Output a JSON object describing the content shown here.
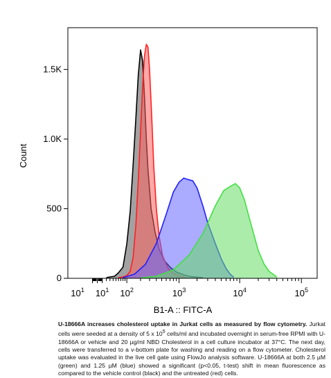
{
  "chart_data": {
    "type": "area",
    "xlabel": "B1-A :: FITC-A",
    "ylabel": "Count",
    "x_scale": "log",
    "xlim": [
      -100,
      180000
    ],
    "ylim": [
      0,
      1800
    ],
    "y_ticks": [
      {
        "value": 0,
        "label": "0"
      },
      {
        "value": 500,
        "label": "500"
      },
      {
        "value": 1000,
        "label": "1.0K"
      },
      {
        "value": 1500,
        "label": "1.5K"
      }
    ],
    "x_tick_labels": [
      {
        "value": -10,
        "base": "10",
        "exp": "1"
      },
      {
        "value": 10,
        "base": "10",
        "exp": "1"
      },
      {
        "value": 100,
        "base": "10",
        "exp": "2"
      },
      {
        "value": 1000,
        "base": "10",
        "exp": "3"
      },
      {
        "value": 10000,
        "base": "10",
        "exp": "4"
      },
      {
        "value": 100000,
        "base": "10",
        "exp": "5"
      }
    ],
    "series": [
      {
        "color": "#000000",
        "fill": "#555555",
        "x": [
          20,
          30,
          45,
          60,
          80,
          100,
          120,
          140,
          160,
          180,
          200,
          220,
          240,
          260,
          280,
          320,
          380,
          450,
          550,
          700,
          900,
          1200,
          1600,
          2500
        ],
        "y": [
          5,
          10,
          15,
          40,
          80,
          250,
          480,
          820,
          1150,
          1460,
          1640,
          1560,
          1300,
          1000,
          780,
          500,
          330,
          210,
          130,
          80,
          45,
          25,
          12,
          5
        ]
      },
      {
        "color": "#ff2020",
        "fill": "#ff6060",
        "x": [
          60,
          80,
          100,
          120,
          140,
          160,
          180,
          200,
          220,
          240,
          260,
          280,
          300,
          330,
          360,
          400,
          450,
          520,
          650,
          800,
          1000,
          1300
        ],
        "y": [
          5,
          10,
          20,
          50,
          150,
          380,
          700,
          1050,
          1380,
          1600,
          1680,
          1660,
          1500,
          1150,
          800,
          500,
          300,
          160,
          70,
          35,
          15,
          5
        ]
      },
      {
        "color": "#2020ff",
        "fill": "#6666ff",
        "x": [
          80,
          150,
          250,
          400,
          600,
          800,
          1000,
          1200,
          1400,
          1700,
          2000,
          2500,
          3000,
          4000,
          5000,
          6000,
          7000,
          8000
        ],
        "y": [
          5,
          30,
          100,
          250,
          460,
          620,
          690,
          720,
          710,
          700,
          650,
          520,
          400,
          250,
          140,
          70,
          30,
          8
        ]
      },
      {
        "color": "#40e040",
        "fill": "#66dd66",
        "x": [
          200,
          400,
          800,
          1500,
          2500,
          4000,
          5500,
          7000,
          8500,
          10000,
          12000,
          15000,
          20000,
          25000,
          30000,
          40000
        ],
        "y": [
          3,
          15,
          60,
          170,
          320,
          520,
          630,
          660,
          680,
          650,
          560,
          400,
          200,
          100,
          50,
          10
        ]
      }
    ]
  },
  "caption": {
    "title": "U-18666A increases cholesterol uptake in Jurkat cells as measured by flow cytometry.",
    "text_before_sup": " Jurkat cells were seeded at a density of 5 x 10",
    "sup": "5",
    "text_after_sup": " cells/ml and incubated overnight in serum-free RPMI with U-18666A or vehicle and 20 µg/ml NBD Cholesterol in a cell culture incubator at 37°C. The next day, cells were transferred to a v-bottom plate for washing and reading on a flow cytometer. Cholesterol uptake was evaluated in the live cell gate using FlowJo analysis software. U-18666A at both 2.5 µM (green) and 1.25 µM (blue) showed a significant (p<0.05, t-test) shift in mean fluorescence as compared to the vehicle control (black) and the untreated (red) cells."
  }
}
